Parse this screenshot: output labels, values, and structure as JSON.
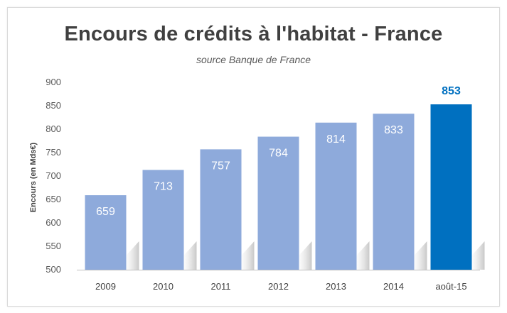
{
  "chart_data": {
    "type": "bar",
    "title": "Encours de crédits à l'habitat - France",
    "subtitle": "source Banque de France",
    "ylabel": "Encours   (en Mds€)",
    "xlabel": "",
    "categories": [
      "2009",
      "2010",
      "2011",
      "2012",
      "2013",
      "2014",
      "août-15"
    ],
    "values": [
      659,
      713,
      757,
      784,
      814,
      833,
      853
    ],
    "data_labels": [
      "659",
      "713",
      "757",
      "784",
      "814",
      "833",
      "853"
    ],
    "ylim": [
      500,
      900
    ],
    "yticks": [
      "500",
      "550",
      "600",
      "650",
      "700",
      "750",
      "800",
      "850",
      "900"
    ],
    "grid": false,
    "legend": "none",
    "colors": {
      "bar": "#8eaadb",
      "highlight": "#0070c0",
      "highlight_label": "#0070c0"
    },
    "highlight_index": 6
  }
}
